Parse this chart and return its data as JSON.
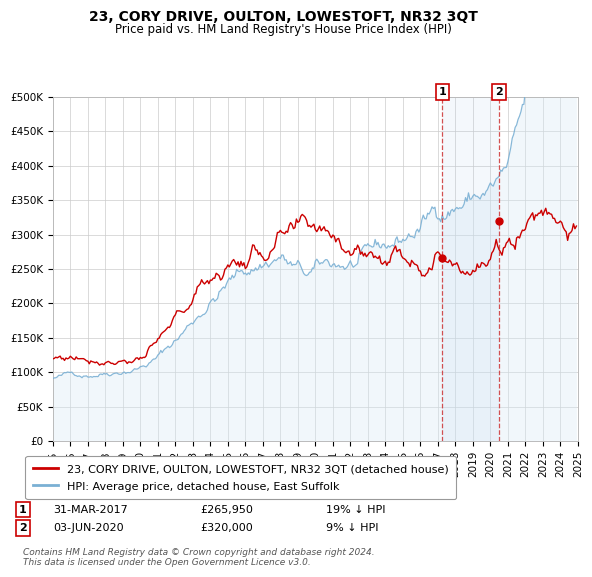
{
  "title": "23, CORY DRIVE, OULTON, LOWESTOFT, NR32 3QT",
  "subtitle": "Price paid vs. HM Land Registry's House Price Index (HPI)",
  "ylim": [
    0,
    500000
  ],
  "xlim": [
    1995,
    2025
  ],
  "yticks": [
    0,
    50000,
    100000,
    150000,
    200000,
    250000,
    300000,
    350000,
    400000,
    450000,
    500000
  ],
  "ytick_labels": [
    "£0",
    "£50K",
    "£100K",
    "£150K",
    "£200K",
    "£250K",
    "£300K",
    "£350K",
    "£400K",
    "£450K",
    "£500K"
  ],
  "line1_color": "#cc0000",
  "line2_color": "#7ab0d4",
  "line2_fill_color": "#d8eaf5",
  "marker_color": "#cc0000",
  "vline_color": "#cc3333",
  "grid_color": "#cccccc",
  "bg_color": "#ffffff",
  "sale1_x": 2017.25,
  "sale1_y": 265950,
  "sale2_x": 2020.5,
  "sale2_y": 320000,
  "legend_label1": "23, CORY DRIVE, OULTON, LOWESTOFT, NR32 3QT (detached house)",
  "legend_label2": "HPI: Average price, detached house, East Suffolk",
  "table_row1": [
    "1",
    "31-MAR-2017",
    "£265,950",
    "19% ↓ HPI"
  ],
  "table_row2": [
    "2",
    "03-JUN-2020",
    "£320,000",
    "9% ↓ HPI"
  ],
  "footer": "Contains HM Land Registry data © Crown copyright and database right 2024.\nThis data is licensed under the Open Government Licence v3.0.",
  "title_fontsize": 10,
  "subtitle_fontsize": 8.5,
  "tick_fontsize": 7.5,
  "legend_fontsize": 8,
  "note_fontsize": 6.5
}
